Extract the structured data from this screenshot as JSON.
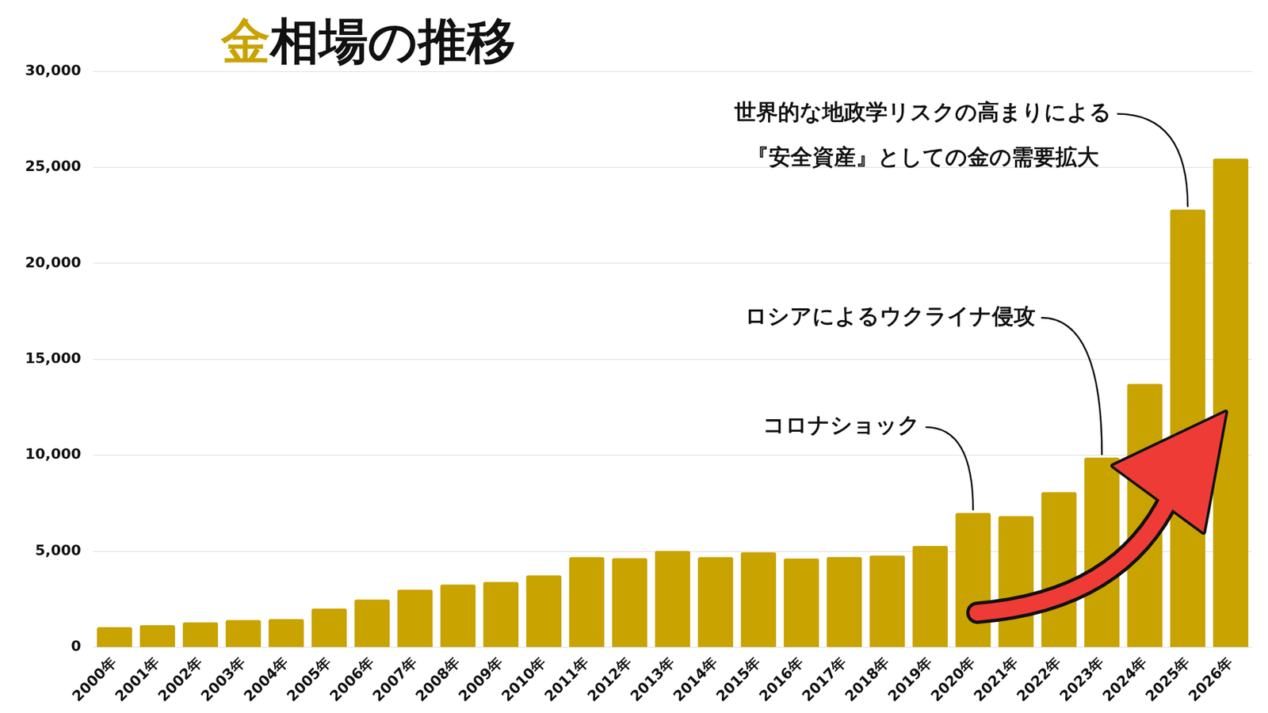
{
  "chart_data": {
    "type": "bar",
    "title": "金相場の推移",
    "categories": [
      "2000年",
      "2001年",
      "2002年",
      "2003年",
      "2004年",
      "2005年",
      "2006年",
      "2007年",
      "2008年",
      "2009年",
      "2010年",
      "2011年",
      "2012年",
      "2013年",
      "2014年",
      "2015年",
      "2016年",
      "2017年",
      "2018年",
      "2019年",
      "2020年",
      "2021年",
      "2022年",
      "2023年",
      "2024年",
      "2025年",
      "2026年"
    ],
    "values": [
      1050,
      1150,
      1300,
      1420,
      1470,
      2020,
      2480,
      3000,
      3270,
      3400,
      3750,
      4690,
      4640,
      5020,
      4690,
      4950,
      4620,
      4700,
      4780,
      5280,
      7000,
      6830,
      8080,
      9880,
      13720,
      22800,
      25450
    ],
    "color": "#c9a300",
    "ylim": [
      0,
      30000
    ],
    "yticks": [
      0,
      {
        "value": 5000,
        "label": "5,000"
      },
      {
        "value": 10000,
        "label": "10,000"
      },
      {
        "value": 15000,
        "label": "15,000"
      },
      {
        "value": 20000,
        "label": "20,000"
      },
      {
        "value": 25000,
        "label": "25,000"
      },
      {
        "value": 30000,
        "label": "30,000"
      }
    ],
    "grid": true,
    "annotations": [
      {
        "text": "コロナショック",
        "category": "2020年"
      },
      {
        "text": "ロシアによるウクライナ侵攻",
        "category": "2023年"
      },
      {
        "text": [
          "世界的な地政学リスクの高まりによる",
          "『安全資産』としての金の需要拡大"
        ],
        "category": "2025年"
      }
    ]
  }
}
